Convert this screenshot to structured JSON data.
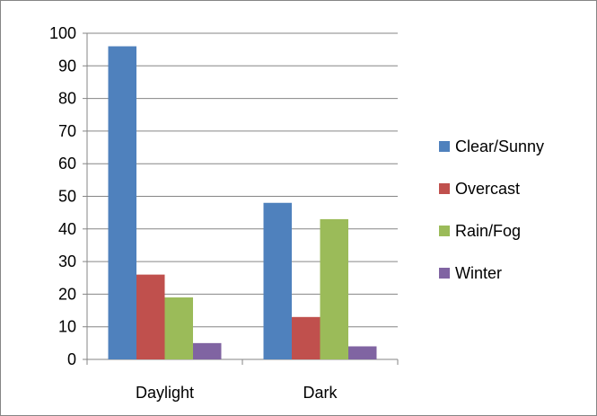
{
  "chart_data": {
    "type": "bar",
    "categories": [
      "Daylight",
      "Dark"
    ],
    "series": [
      {
        "name": "Clear/Sunny",
        "values": [
          96,
          48
        ],
        "color": "#4f81bd"
      },
      {
        "name": "Overcast",
        "values": [
          26,
          13
        ],
        "color": "#c0504d"
      },
      {
        "name": "Rain/Fog",
        "values": [
          19,
          43
        ],
        "color": "#9bbb59"
      },
      {
        "name": "Winter",
        "values": [
          5,
          4
        ],
        "color": "#8064a2"
      }
    ],
    "ylim": [
      0,
      100
    ],
    "yticks": [
      0,
      10,
      20,
      30,
      40,
      50,
      60,
      70,
      80,
      90,
      100
    ],
    "grid": true,
    "legend": "right"
  }
}
